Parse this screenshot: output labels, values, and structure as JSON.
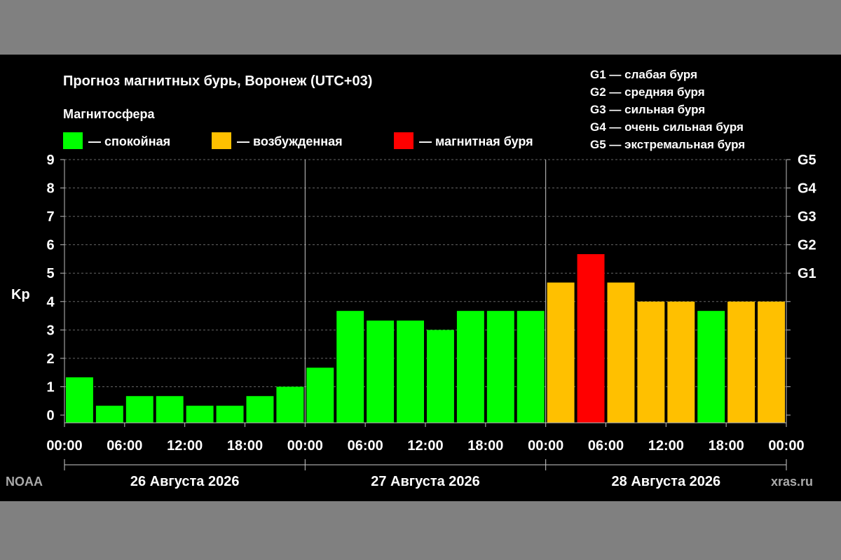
{
  "colors": {
    "background": "#000000",
    "page": "#808080",
    "quiet": "#00ff00",
    "excited": "#ffc000",
    "storm": "#ff0000",
    "grid": "#666666",
    "axis": "#bbbbbb"
  },
  "header": {
    "title": "Прогноз магнитных бурь, Воронеж (UTC+03)",
    "legend_title": "Магнитосфера"
  },
  "legend": [
    {
      "label": "— спокойная",
      "color": "#00ff00"
    },
    {
      "label": "— возбужденная",
      "color": "#ffc000"
    },
    {
      "label": "— магнитная буря",
      "color": "#ff0000"
    }
  ],
  "storm_scale": [
    "G1 — слабая буря",
    "G2 — средняя буря",
    "G3 — сильная буря",
    "G4 — очень сильная буря",
    "G5 — экстремальная буря"
  ],
  "footer": {
    "left": "NOAA",
    "right": "xras.ru"
  },
  "chart_data": {
    "type": "bar",
    "ylabel": "Kp",
    "ylim": [
      0,
      9
    ],
    "yticks": [
      0,
      1,
      2,
      3,
      4,
      5,
      6,
      7,
      8,
      9
    ],
    "right_ticks": [
      {
        "label": "G1",
        "value": 5
      },
      {
        "label": "G2",
        "value": 6
      },
      {
        "label": "G3",
        "value": 7
      },
      {
        "label": "G4",
        "value": 8
      },
      {
        "label": "G5",
        "value": 9
      }
    ],
    "x_tick_labels": [
      "00:00",
      "06:00",
      "12:00",
      "18:00",
      "00:00",
      "06:00",
      "12:00",
      "18:00",
      "00:00",
      "06:00",
      "12:00",
      "18:00",
      "00:00"
    ],
    "days": [
      "26 Августа 2026",
      "27 Августа 2026",
      "28 Августа 2026"
    ],
    "bars_per_day": 8,
    "values": [
      1.33,
      0.33,
      0.67,
      0.67,
      0.33,
      0.33,
      0.67,
      1.0,
      1.67,
      3.67,
      3.33,
      3.33,
      3.0,
      3.67,
      3.67,
      3.67,
      4.67,
      5.67,
      4.67,
      4.0,
      4.0,
      3.67,
      4.0,
      4.0
    ],
    "levels": [
      "quiet",
      "quiet",
      "quiet",
      "quiet",
      "quiet",
      "quiet",
      "quiet",
      "quiet",
      "quiet",
      "quiet",
      "quiet",
      "quiet",
      "quiet",
      "quiet",
      "quiet",
      "quiet",
      "excited",
      "storm",
      "excited",
      "excited",
      "excited",
      "quiet",
      "excited",
      "excited"
    ],
    "grid": "dashed at integer Kp values"
  }
}
